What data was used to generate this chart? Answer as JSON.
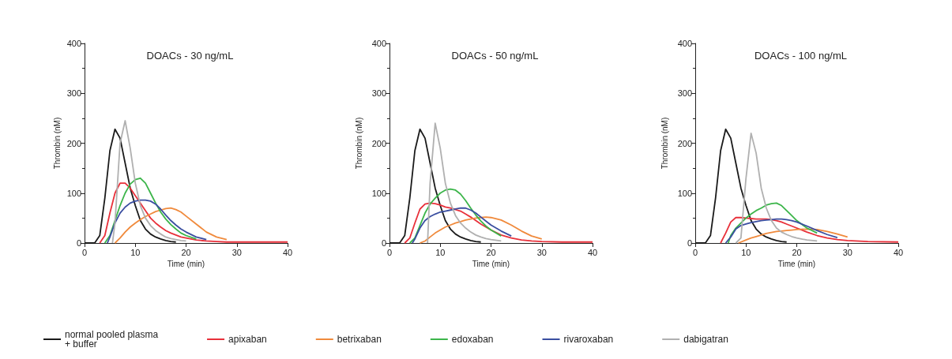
{
  "chart_data": [
    {
      "type": "line",
      "title": "DOACs - 30 ng/mL",
      "xlabel": "Time (min)",
      "ylabel": "Thrombin (nM)",
      "xlim": [
        0,
        40
      ],
      "xticks": [
        0,
        10,
        20,
        30,
        40
      ],
      "ylim": [
        0,
        400
      ],
      "yticks": [
        0,
        100,
        200,
        300,
        400
      ],
      "grid": false,
      "marker": "none",
      "line_style": "solid",
      "legend": "bottom",
      "series": [
        {
          "name": "normal pooled plasma\n+ buffer",
          "color": "#1a1a1a",
          "x": [
            0,
            2,
            3,
            4,
            5,
            6,
            7,
            8,
            9,
            10,
            11,
            12,
            13,
            14,
            15,
            16,
            17,
            18
          ],
          "values": [
            0,
            0,
            15,
            90,
            185,
            228,
            210,
            160,
            110,
            75,
            45,
            28,
            18,
            12,
            8,
            5,
            3,
            2
          ]
        },
        {
          "name": "apixaban",
          "color": "#e8303a",
          "x": [
            3,
            4,
            5,
            6,
            7,
            8,
            9,
            10,
            11,
            12,
            13,
            14,
            15,
            16,
            17,
            18,
            19,
            20,
            22,
            24,
            26,
            28,
            30,
            34,
            40
          ],
          "values": [
            0,
            15,
            60,
            100,
            120,
            120,
            110,
            95,
            80,
            65,
            50,
            40,
            32,
            25,
            20,
            16,
            12,
            10,
            6,
            4,
            3,
            2,
            2,
            2,
            2
          ]
        },
        {
          "name": "betrixaban",
          "color": "#f08a3c",
          "x": [
            6,
            7,
            8,
            9,
            10,
            11,
            12,
            13,
            14,
            15,
            16,
            17,
            18,
            19,
            20,
            22,
            24,
            26,
            28
          ],
          "values": [
            0,
            10,
            22,
            32,
            40,
            47,
            53,
            58,
            63,
            66,
            69,
            70,
            67,
            62,
            54,
            38,
            22,
            12,
            7
          ]
        },
        {
          "name": "edoxaban",
          "color": "#3cb54a",
          "x": [
            4,
            5,
            6,
            7,
            8,
            9,
            10,
            11,
            12,
            13,
            14,
            15,
            16,
            17,
            18,
            19,
            20,
            22
          ],
          "values": [
            0,
            15,
            45,
            75,
            100,
            118,
            127,
            130,
            120,
            100,
            80,
            62,
            48,
            37,
            28,
            20,
            15,
            8
          ]
        },
        {
          "name": "rivaroxaban",
          "color": "#3a4ea0",
          "x": [
            4.5,
            5,
            6,
            7,
            8,
            9,
            10,
            11,
            12,
            13,
            14,
            15,
            16,
            17,
            18,
            19,
            20,
            22,
            24
          ],
          "values": [
            0,
            12,
            40,
            60,
            72,
            80,
            84,
            86,
            86,
            84,
            78,
            68,
            56,
            45,
            36,
            28,
            22,
            12,
            7
          ]
        },
        {
          "name": "dabigatran",
          "color": "#b0b0b0",
          "x": [
            5.5,
            6,
            7,
            8,
            9,
            10,
            11,
            12,
            13,
            14,
            15,
            16,
            17,
            18,
            19,
            20
          ],
          "values": [
            0,
            40,
            200,
            245,
            190,
            120,
            75,
            50,
            35,
            25,
            18,
            12,
            9,
            7,
            5,
            4
          ]
        }
      ]
    },
    {
      "type": "line",
      "title": "DOACs - 50 ng/mL",
      "xlabel": "Time (min)",
      "ylabel": "Thrombin (nM)",
      "xlim": [
        0,
        40
      ],
      "xticks": [
        0,
        10,
        20,
        30,
        40
      ],
      "ylim": [
        0,
        400
      ],
      "yticks": [
        0,
        100,
        200,
        300,
        400
      ],
      "grid": false,
      "marker": "none",
      "line_style": "solid",
      "legend": false,
      "series": [
        {
          "color": "#1a1a1a",
          "x": [
            0,
            2,
            3,
            4,
            5,
            6,
            7,
            8,
            9,
            10,
            11,
            12,
            13,
            14,
            15,
            16,
            17,
            18
          ],
          "values": [
            0,
            0,
            15,
            90,
            185,
            228,
            210,
            160,
            110,
            75,
            45,
            28,
            18,
            12,
            8,
            5,
            3,
            2
          ]
        },
        {
          "color": "#e8303a",
          "x": [
            3,
            4,
            5,
            6,
            7,
            8,
            9,
            10,
            11,
            12,
            13,
            14,
            15,
            16,
            17,
            18,
            19,
            20,
            22,
            24,
            26,
            28,
            30,
            34,
            40
          ],
          "values": [
            0,
            10,
            40,
            68,
            78,
            80,
            79,
            76,
            72,
            70,
            67,
            64,
            58,
            52,
            45,
            38,
            32,
            26,
            16,
            10,
            6,
            4,
            3,
            2,
            2
          ]
        },
        {
          "color": "#f08a3c",
          "x": [
            6,
            7,
            8,
            9,
            10,
            11,
            12,
            13,
            14,
            15,
            16,
            17,
            18,
            19,
            20,
            22,
            24,
            26,
            28,
            30
          ],
          "values": [
            0,
            4,
            12,
            20,
            26,
            32,
            36,
            40,
            43,
            46,
            48,
            50,
            51,
            52,
            51,
            46,
            36,
            24,
            14,
            8
          ]
        },
        {
          "color": "#3cb54a",
          "x": [
            4,
            5,
            6,
            7,
            8,
            9,
            10,
            11,
            12,
            13,
            14,
            15,
            16,
            17,
            18,
            19,
            20,
            22
          ],
          "values": [
            0,
            10,
            35,
            60,
            78,
            90,
            100,
            106,
            108,
            106,
            98,
            85,
            70,
            56,
            44,
            34,
            26,
            14
          ]
        },
        {
          "color": "#3a4ea0",
          "x": [
            4.5,
            5,
            6,
            7,
            8,
            9,
            10,
            11,
            12,
            13,
            14,
            15,
            16,
            17,
            18,
            19,
            20,
            22,
            24
          ],
          "values": [
            0,
            8,
            30,
            45,
            53,
            58,
            62,
            64,
            66,
            68,
            70,
            70,
            66,
            60,
            52,
            44,
            36,
            24,
            14
          ]
        },
        {
          "color": "#b0b0b0",
          "x": [
            7.5,
            8,
            9,
            10,
            11,
            12,
            13,
            14,
            15,
            16,
            17,
            18,
            19,
            20,
            22
          ],
          "values": [
            0,
            120,
            240,
            190,
            120,
            80,
            55,
            40,
            30,
            22,
            16,
            12,
            9,
            7,
            4
          ]
        }
      ]
    },
    {
      "type": "line",
      "title": "DOACs - 100 ng/mL",
      "xlabel": "Time (min)",
      "ylabel": "Thrombin (nM)",
      "xlim": [
        0,
        40
      ],
      "xticks": [
        0,
        10,
        20,
        30,
        40
      ],
      "ylim": [
        0,
        400
      ],
      "yticks": [
        0,
        100,
        200,
        300,
        400
      ],
      "grid": false,
      "marker": "none",
      "line_style": "solid",
      "legend": false,
      "series": [
        {
          "color": "#1a1a1a",
          "x": [
            0,
            2,
            3,
            4,
            5,
            6,
            7,
            8,
            9,
            10,
            11,
            12,
            13,
            14,
            15,
            16,
            17,
            18
          ],
          "values": [
            0,
            0,
            15,
            90,
            185,
            228,
            210,
            160,
            110,
            75,
            45,
            28,
            18,
            12,
            8,
            5,
            3,
            2
          ]
        },
        {
          "color": "#e8303a",
          "x": [
            5,
            6,
            7,
            8,
            9,
            10,
            11,
            12,
            13,
            14,
            15,
            16,
            17,
            18,
            19,
            20,
            22,
            24,
            26,
            28,
            30,
            34,
            40
          ],
          "values": [
            0,
            20,
            42,
            51,
            51,
            50,
            49,
            48,
            48,
            48,
            47,
            45,
            42,
            38,
            34,
            30,
            22,
            15,
            10,
            7,
            5,
            3,
            2
          ]
        },
        {
          "color": "#f08a3c",
          "x": [
            8.5,
            9,
            10,
            11,
            12,
            13,
            14,
            15,
            16,
            17,
            18,
            19,
            20,
            22,
            24,
            26,
            28,
            30
          ],
          "values": [
            0,
            2,
            6,
            10,
            13,
            16,
            19,
            21,
            23,
            24,
            25,
            26,
            27,
            28,
            27,
            23,
            18,
            12
          ]
        },
        {
          "color": "#3cb54a",
          "x": [
            6.5,
            7,
            8,
            9,
            10,
            11,
            12,
            13,
            14,
            15,
            16,
            17,
            18,
            19,
            20,
            22,
            24
          ],
          "values": [
            0,
            15,
            30,
            40,
            50,
            58,
            65,
            70,
            76,
            79,
            80,
            75,
            65,
            55,
            45,
            30,
            20
          ]
        },
        {
          "color": "#3a4ea0",
          "x": [
            6,
            7,
            8,
            9,
            10,
            11,
            12,
            13,
            14,
            15,
            16,
            17,
            18,
            19,
            20,
            22,
            24,
            26,
            28
          ],
          "values": [
            0,
            12,
            28,
            35,
            38,
            41,
            43,
            45,
            46,
            47,
            48,
            48,
            47,
            45,
            42,
            34,
            25,
            17,
            11
          ]
        },
        {
          "color": "#b0b0b0",
          "x": [
            8,
            9,
            10,
            11,
            12,
            13,
            14,
            15,
            16,
            17,
            18,
            19,
            20,
            22,
            24
          ],
          "values": [
            0,
            10,
            130,
            220,
            180,
            110,
            70,
            45,
            30,
            22,
            17,
            13,
            10,
            6,
            4
          ]
        }
      ]
    }
  ]
}
